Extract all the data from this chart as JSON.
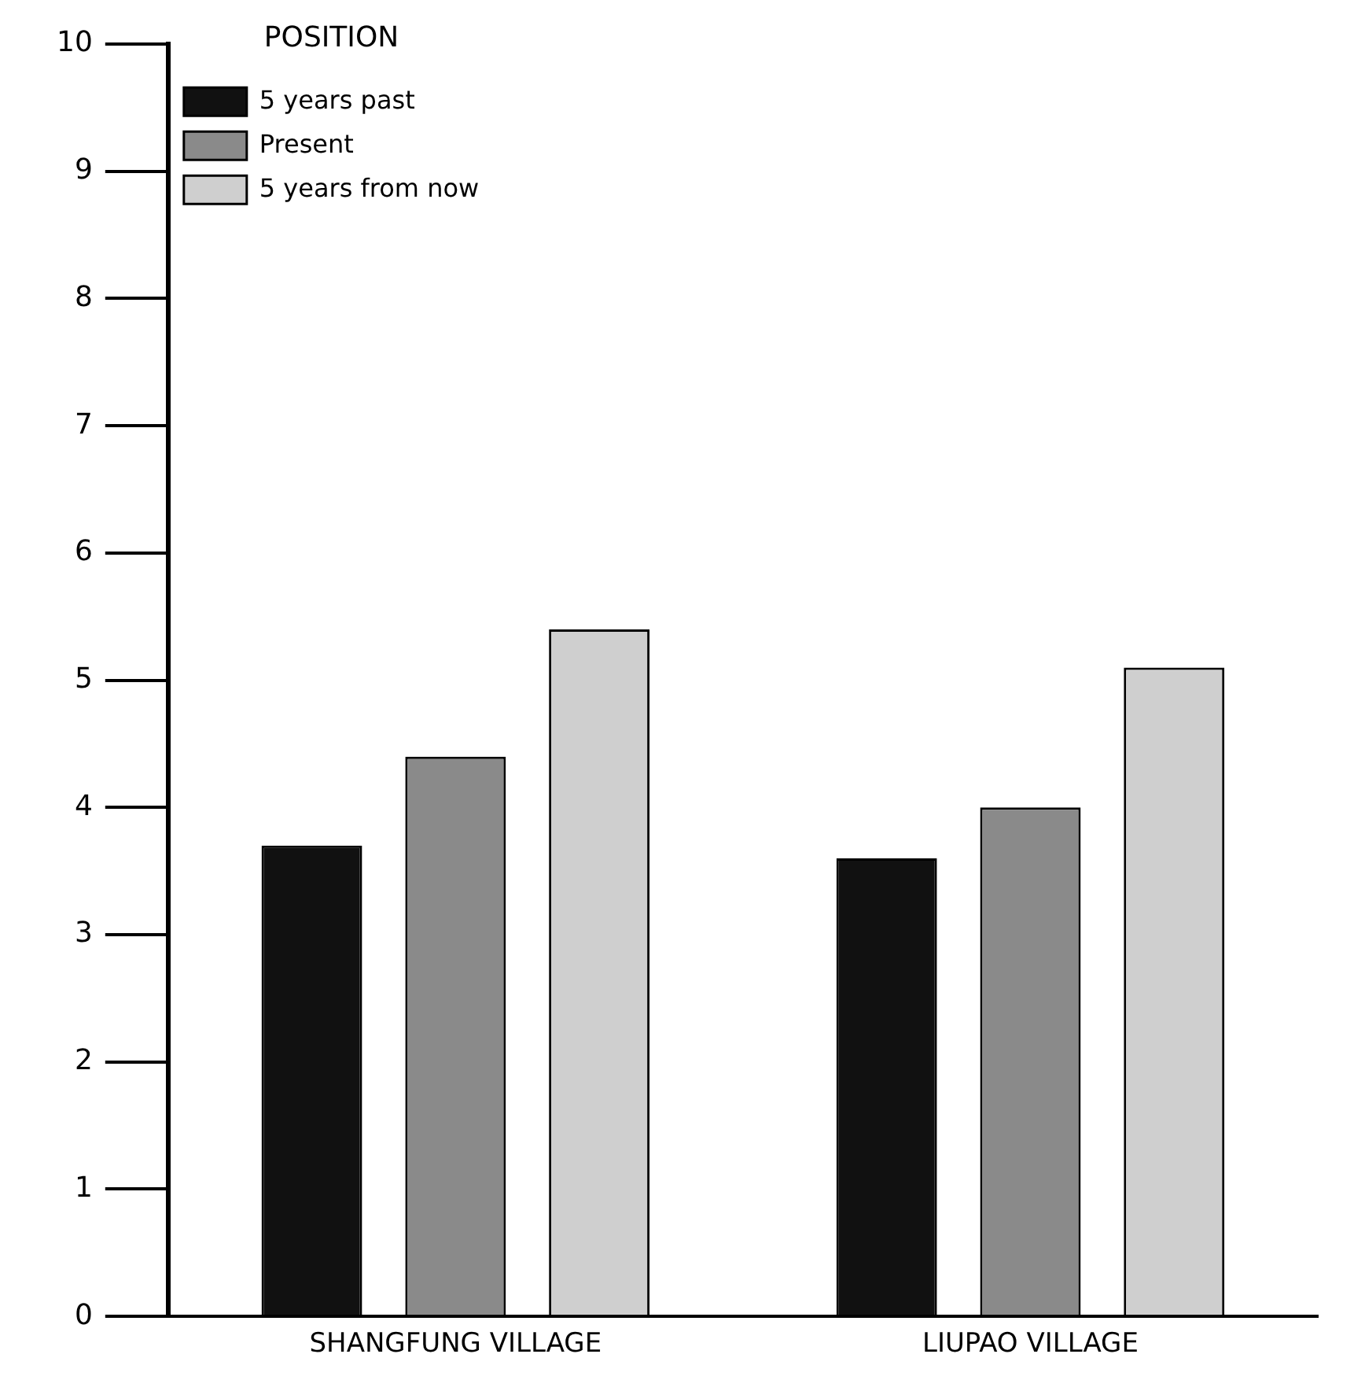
{
  "chart_data": {
    "type": "bar",
    "legend_title": "POSITION",
    "categories": [
      "SHANGFUNG VILLAGE",
      "LIUPAO VILLAGE"
    ],
    "series": [
      {
        "name": "5 years past",
        "color": "#111111",
        "values": [
          3.7,
          3.6
        ]
      },
      {
        "name": "Present",
        "color": "#8a8a8a",
        "values": [
          4.4,
          4.0
        ]
      },
      {
        "name": "5 years from now",
        "color": "#cfcfcf",
        "values": [
          5.4,
          5.1
        ]
      }
    ],
    "ylim": [
      0,
      10
    ],
    "yticks": [
      0,
      1,
      2,
      3,
      4,
      5,
      6,
      7,
      8,
      9,
      10
    ],
    "legend": "top left"
  }
}
